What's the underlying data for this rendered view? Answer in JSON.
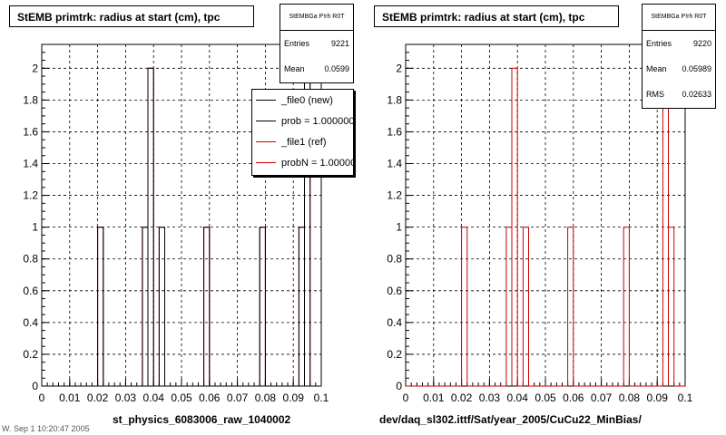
{
  "colors": {
    "ref": "#cc0000",
    "new": "#000000"
  },
  "chart_data": [
    {
      "type": "bar",
      "title": "StEMB primtrk: radius at start (cm), tpc",
      "xlabel": "st_physics_6083006_raw_1040002",
      "ylabel": "",
      "xlim": [
        0,
        0.1
      ],
      "ylim": [
        0,
        2.15
      ],
      "xticks": [
        "0",
        "0.01",
        "0.02",
        "0.03",
        "0.04",
        "0.05",
        "0.06",
        "0.07",
        "0.08",
        "0.09",
        "0.1"
      ],
      "yticks": [
        "0",
        "0.2",
        "0.4",
        "0.6",
        "0.8",
        "1",
        "1.2",
        "1.4",
        "1.6",
        "1.8",
        "2"
      ],
      "grid": true,
      "bin_width": 0.002,
      "series": [
        {
          "name": "_file0 (new)",
          "color": "#000000",
          "bins": [
            {
              "x": 0.021,
              "y": 1
            },
            {
              "x": 0.037,
              "y": 1
            },
            {
              "x": 0.039,
              "y": 2
            },
            {
              "x": 0.043,
              "y": 1
            },
            {
              "x": 0.059,
              "y": 1
            },
            {
              "x": 0.079,
              "y": 1
            },
            {
              "x": 0.093,
              "y": 1
            },
            {
              "x": 0.095,
              "y": 2
            }
          ]
        },
        {
          "name": "_file1 (ref)",
          "color": "#cc0000",
          "bins": [
            {
              "x": 0.021,
              "y": 1
            },
            {
              "x": 0.037,
              "y": 1
            },
            {
              "x": 0.039,
              "y": 2
            },
            {
              "x": 0.043,
              "y": 1
            },
            {
              "x": 0.059,
              "y": 1
            },
            {
              "x": 0.079,
              "y": 1
            },
            {
              "x": 0.093,
              "y": 1
            },
            {
              "x": 0.095,
              "y": 2
            }
          ]
        }
      ],
      "stats": {
        "name": "StEMBGa P!rh R0T",
        "entries": "9221",
        "mean": "0.0599"
      },
      "legend": {
        "placement": "top-right",
        "entries": [
          "_file0 (new)",
          "prob = 1.000000",
          "_file1 (ref)",
          "probN = 1.000000"
        ]
      }
    },
    {
      "type": "bar",
      "title": "StEMB primtrk: radius at start (cm), tpc",
      "xlabel": "dev/daq_sl302.ittf/Sat/year_2005/CuCu22_MinBias/",
      "ylabel": "",
      "xlim": [
        0,
        0.1
      ],
      "ylim": [
        0,
        2.15
      ],
      "xticks": [
        "0",
        "0.01",
        "0.02",
        "0.03",
        "0.04",
        "0.05",
        "0.06",
        "0.07",
        "0.08",
        "0.09",
        "0.1"
      ],
      "yticks": [
        "0",
        "0.2",
        "0.4",
        "0.6",
        "0.8",
        "1",
        "1.2",
        "1.4",
        "1.6",
        "1.8",
        "2"
      ],
      "grid": true,
      "bin_width": 0.002,
      "series": [
        {
          "name": "",
          "color": "#cc0000",
          "bins": [
            {
              "x": 0.021,
              "y": 1
            },
            {
              "x": 0.037,
              "y": 1
            },
            {
              "x": 0.039,
              "y": 2
            },
            {
              "x": 0.043,
              "y": 1
            },
            {
              "x": 0.059,
              "y": 1
            },
            {
              "x": 0.079,
              "y": 1
            },
            {
              "x": 0.093,
              "y": 2
            },
            {
              "x": 0.095,
              "y": 1
            }
          ]
        }
      ],
      "stats": {
        "name": "StEMBGa P!rh R0T",
        "entries": "9220",
        "mean": "0.05989",
        "rms": "0.02633"
      }
    }
  ],
  "labels": {
    "entries": "Entries",
    "mean": "Mean",
    "rms": "RMS"
  },
  "footer": "W. Sep 1 10:20:47 2005"
}
